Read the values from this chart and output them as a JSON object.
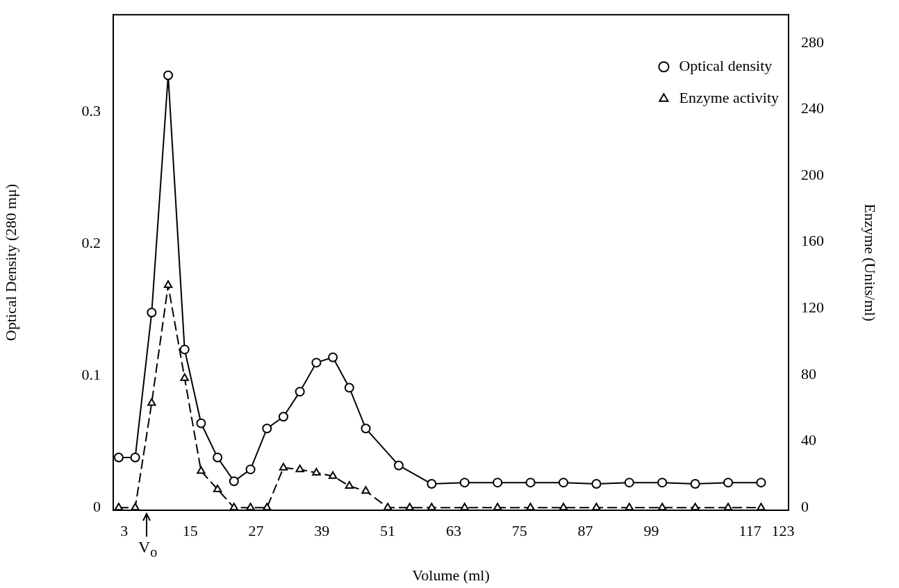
{
  "chart_data": {
    "type": "line",
    "xlabel": "Volume (ml)",
    "ylabel": "Optical Density (280 mμ)",
    "y2label": "Enzyme (Units/ml)",
    "xlim": [
      1,
      124
    ],
    "xticks": [
      3,
      15,
      27,
      39,
      51,
      63,
      75,
      87,
      99,
      117,
      123
    ],
    "ylim": [
      -0.002,
      0.374
    ],
    "yticks": [
      0,
      0.1,
      0.2,
      0.3
    ],
    "y2lim": [
      -1.6,
      297
    ],
    "y2ticks": [
      0,
      40,
      80,
      120,
      160,
      200,
      240,
      280
    ],
    "legend": "top right",
    "annotations": [
      "V$_{o}$"
    ],
    "series": [
      {
        "name": "Optical density",
        "color": "#000000",
        "marker": "circle",
        "line_style": "solid",
        "x": [
          2,
          5,
          8,
          11,
          14,
          17,
          20,
          23,
          26,
          29,
          32,
          35,
          38,
          41,
          44,
          47,
          53,
          59,
          65,
          71,
          77,
          83,
          89,
          95,
          101,
          107,
          113,
          119
        ],
        "values": [
          0.038,
          0.038,
          0.148,
          0.328,
          0.12,
          0.064,
          0.038,
          0.02,
          0.029,
          0.06,
          0.069,
          0.088,
          0.11,
          0.114,
          0.091,
          0.06,
          0.032,
          0.018,
          0.019,
          0.019,
          0.019,
          0.019,
          0.018,
          0.019,
          0.019,
          0.018,
          0.019,
          0.019
        ]
      },
      {
        "name": "Enzyme activity",
        "color": "#000000",
        "marker": "triangle",
        "line_style": "dashed",
        "axis": "y2",
        "x": [
          2,
          5,
          8,
          11,
          14,
          17,
          20,
          23,
          26,
          29,
          32,
          35,
          38,
          41,
          44,
          47,
          51,
          55,
          59,
          65,
          71,
          77,
          83,
          89,
          95,
          101,
          107,
          113,
          119
        ],
        "values": [
          0,
          0,
          63,
          134,
          78,
          22,
          11,
          0,
          0,
          0,
          24,
          23,
          21,
          19,
          13,
          10,
          0,
          0,
          0,
          0,
          0,
          0,
          0,
          0,
          0,
          0,
          0,
          0,
          0
        ]
      }
    ]
  }
}
